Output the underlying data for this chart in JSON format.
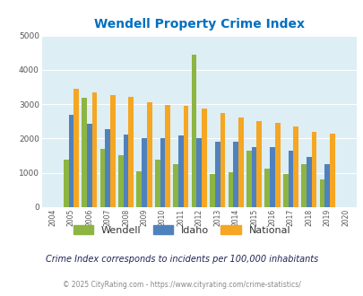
{
  "title": "Wendell Property Crime Index",
  "years": [
    2004,
    2005,
    2006,
    2007,
    2008,
    2009,
    2010,
    2011,
    2012,
    2013,
    2014,
    2015,
    2016,
    2017,
    2018,
    2019,
    2020
  ],
  "wendell": [
    0,
    1380,
    3200,
    1700,
    1520,
    1050,
    1380,
    1260,
    4430,
    970,
    1010,
    1650,
    1130,
    970,
    1260,
    800,
    0
  ],
  "idaho": [
    0,
    2700,
    2420,
    2270,
    2110,
    2020,
    2020,
    2090,
    2020,
    1900,
    1900,
    1750,
    1760,
    1650,
    1470,
    1250,
    0
  ],
  "national": [
    0,
    3460,
    3350,
    3260,
    3220,
    3060,
    2970,
    2950,
    2880,
    2740,
    2610,
    2500,
    2460,
    2360,
    2200,
    2130,
    0
  ],
  "wendell_color": "#8db542",
  "idaho_color": "#4f81bd",
  "national_color": "#f5a623",
  "bg_color": "#ddeef4",
  "title_color": "#0070c0",
  "subtitle": "Crime Index corresponds to incidents per 100,000 inhabitants",
  "footer": "© 2025 CityRating.com - https://www.cityrating.com/crime-statistics/",
  "ylim": [
    0,
    5000
  ],
  "yticks": [
    0,
    1000,
    2000,
    3000,
    4000,
    5000
  ]
}
